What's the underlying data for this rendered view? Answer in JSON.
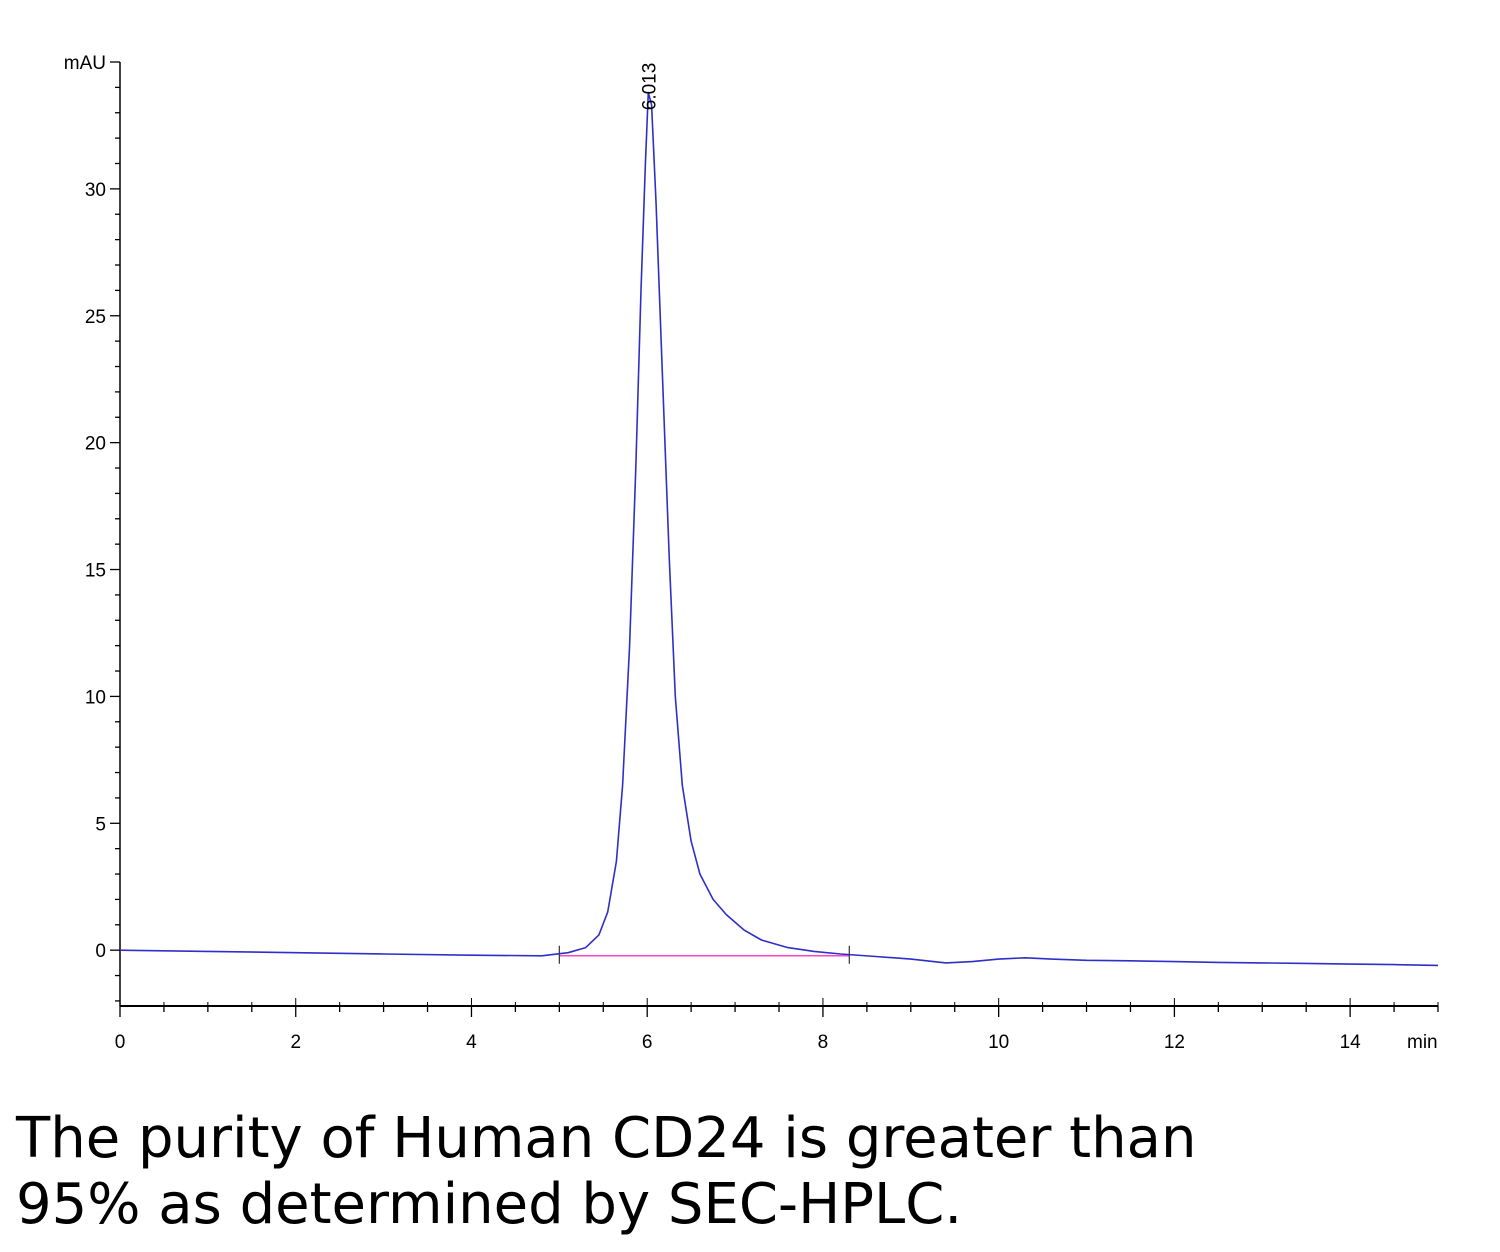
{
  "chart_data": {
    "type": "line",
    "xlabel": "min",
    "ylabel": "mAU",
    "xlim": [
      0,
      15
    ],
    "ylim": [
      -2.2,
      35
    ],
    "x_ticks": [
      0,
      2,
      4,
      6,
      8,
      10,
      12,
      14
    ],
    "y_ticks": [
      0,
      5,
      10,
      15,
      20,
      25,
      30
    ],
    "x_minor_step": 0.5,
    "y_minor_step": 1,
    "grid": false,
    "colors": {
      "trace": "#2f2fc8",
      "baseline": "#ff44cc",
      "axis": "#000000"
    },
    "series": [
      {
        "x": [
          0.0,
          1.0,
          2.0,
          3.0,
          4.0,
          4.8,
          5.1,
          5.3,
          5.45,
          5.55,
          5.65,
          5.72,
          5.8,
          5.87,
          5.93,
          5.98,
          6.013,
          6.05,
          6.1,
          6.17,
          6.25,
          6.32,
          6.4,
          6.5,
          6.6,
          6.75,
          6.9,
          7.1,
          7.3,
          7.6,
          7.9,
          8.2,
          8.6,
          9.0,
          9.4,
          9.7,
          10.0,
          10.3,
          10.6,
          11.0,
          11.5,
          12.0,
          12.5,
          13.0,
          13.5,
          14.0,
          14.5,
          15.0
        ],
        "y": [
          0.0,
          -0.05,
          -0.1,
          -0.15,
          -0.2,
          -0.22,
          -0.1,
          0.1,
          0.6,
          1.5,
          3.5,
          6.5,
          12.0,
          19.0,
          26.0,
          31.0,
          33.8,
          33.3,
          29.5,
          23.0,
          15.5,
          10.0,
          6.5,
          4.3,
          3.0,
          2.0,
          1.4,
          0.8,
          0.4,
          0.1,
          -0.05,
          -0.15,
          -0.25,
          -0.35,
          -0.5,
          -0.45,
          -0.35,
          -0.3,
          -0.35,
          -0.4,
          -0.42,
          -0.45,
          -0.48,
          -0.5,
          -0.52,
          -0.55,
          -0.57,
          -0.6
        ]
      }
    ],
    "integration_baseline": {
      "x": [
        5.0,
        8.3
      ],
      "y": [
        -0.22,
        -0.22
      ]
    },
    "integration_markers": [
      5.0,
      8.3
    ],
    "peak_annotation": {
      "x": 6.013,
      "label": "6.013"
    }
  },
  "caption": {
    "line1": "The purity of Human CD24 is greater than",
    "line2": "95% as determined by SEC-HPLC."
  }
}
